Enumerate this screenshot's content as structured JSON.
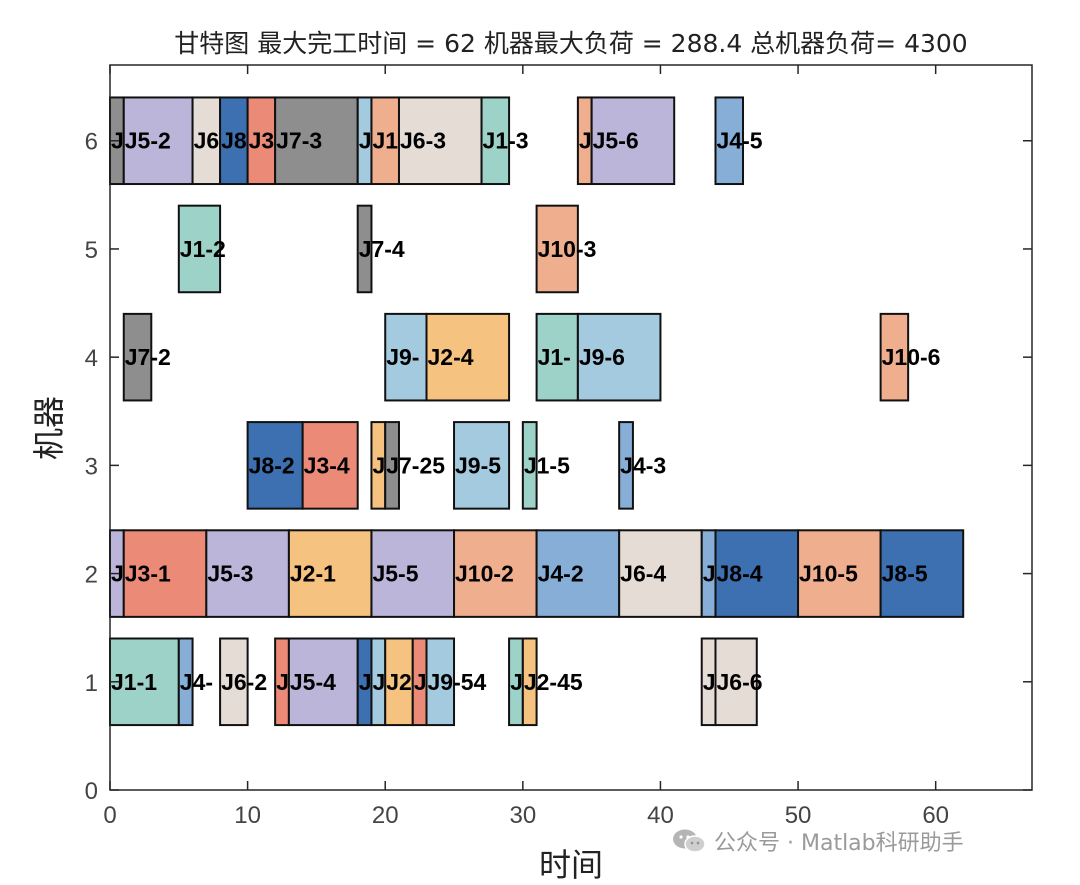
{
  "chart_data": {
    "type": "gantt",
    "title": "甘特图 最大完工时间 = 62 机器最大负荷 = 288.4 总机器负荷= 4300",
    "xlabel": "时间",
    "ylabel": "机器",
    "xlim": [
      0,
      67
    ],
    "ylim": [
      0,
      6.7
    ],
    "xticks": [
      0,
      10,
      20,
      30,
      40,
      50,
      60
    ],
    "yticks": [
      0,
      1,
      2,
      3,
      4,
      5,
      6
    ],
    "grid": false,
    "job_colors": {
      "J1": "#9dd2c8",
      "J2": "#f5c27f",
      "J3": "#ec8a78",
      "J4": "#87aed6",
      "J5": "#bbb5da",
      "J6": "#e6dcd6",
      "J7": "#8e8e8e",
      "J8": "#3c70b0",
      "J9": "#a4cadf",
      "J10": "#efae8e"
    },
    "tasks": [
      {
        "machine": 6,
        "job": "J7",
        "start": 0,
        "end": 1,
        "label": "J"
      },
      {
        "machine": 6,
        "job": "J5",
        "start": 1,
        "end": 6,
        "label": "J5-2"
      },
      {
        "machine": 6,
        "job": "J6",
        "start": 6,
        "end": 8,
        "label": "J6"
      },
      {
        "machine": 6,
        "job": "J8",
        "start": 8,
        "end": 10,
        "label": "J8"
      },
      {
        "machine": 6,
        "job": "J3",
        "start": 10,
        "end": 12,
        "label": "J3"
      },
      {
        "machine": 6,
        "job": "J7",
        "start": 12,
        "end": 18,
        "label": "J7-3"
      },
      {
        "machine": 6,
        "job": "J9",
        "start": 18,
        "end": 19,
        "label": "J"
      },
      {
        "machine": 6,
        "job": "J10",
        "start": 19,
        "end": 21,
        "label": "J1"
      },
      {
        "machine": 6,
        "job": "J6",
        "start": 21,
        "end": 27,
        "label": "J6-3"
      },
      {
        "machine": 6,
        "job": "J1",
        "start": 27,
        "end": 29,
        "label": "J1-3"
      },
      {
        "machine": 6,
        "job": "J10",
        "start": 34,
        "end": 35,
        "label": "J"
      },
      {
        "machine": 6,
        "job": "J5",
        "start": 35,
        "end": 41,
        "label": "J5-6"
      },
      {
        "machine": 6,
        "job": "J4",
        "start": 44,
        "end": 46,
        "label": "J4-5"
      },
      {
        "machine": 5,
        "job": "J1",
        "start": 5,
        "end": 8,
        "label": "J1-2"
      },
      {
        "machine": 5,
        "job": "J7",
        "start": 18,
        "end": 19,
        "label": "J7-4"
      },
      {
        "machine": 5,
        "job": "J10",
        "start": 31,
        "end": 34,
        "label": "J10-3"
      },
      {
        "machine": 4,
        "job": "J7",
        "start": 1,
        "end": 3,
        "label": "J7-2"
      },
      {
        "machine": 4,
        "job": "J9",
        "start": 20,
        "end": 23,
        "label": "J9-"
      },
      {
        "machine": 4,
        "job": "J2",
        "start": 23,
        "end": 29,
        "label": "J2-4"
      },
      {
        "machine": 4,
        "job": "J1",
        "start": 31,
        "end": 34,
        "label": "J1-"
      },
      {
        "machine": 4,
        "job": "J9",
        "start": 34,
        "end": 40,
        "label": "J9-6"
      },
      {
        "machine": 4,
        "job": "J10",
        "start": 56,
        "end": 58,
        "label": "J10-6"
      },
      {
        "machine": 3,
        "job": "J8",
        "start": 10,
        "end": 14,
        "label": "J8-2"
      },
      {
        "machine": 3,
        "job": "J3",
        "start": 14,
        "end": 18,
        "label": "J3-4"
      },
      {
        "machine": 3,
        "job": "J2",
        "start": 19,
        "end": 20,
        "label": "J"
      },
      {
        "machine": 3,
        "job": "J7",
        "start": 20,
        "end": 21,
        "label": "J7-25"
      },
      {
        "machine": 3,
        "job": "J9",
        "start": 25,
        "end": 29,
        "label": "J9-5"
      },
      {
        "machine": 3,
        "job": "J1",
        "start": 30,
        "end": 31,
        "label": "J1-5"
      },
      {
        "machine": 3,
        "job": "J4",
        "start": 37,
        "end": 38,
        "label": "J4-3"
      },
      {
        "machine": 2,
        "job": "J5",
        "start": 0,
        "end": 1,
        "label": "J"
      },
      {
        "machine": 2,
        "job": "J3",
        "start": 1,
        "end": 7,
        "label": "J3-1"
      },
      {
        "machine": 2,
        "job": "J5",
        "start": 7,
        "end": 13,
        "label": "J5-3"
      },
      {
        "machine": 2,
        "job": "J2",
        "start": 13,
        "end": 19,
        "label": "J2-1"
      },
      {
        "machine": 2,
        "job": "J5",
        "start": 19,
        "end": 25,
        "label": "J5-5"
      },
      {
        "machine": 2,
        "job": "J10",
        "start": 25,
        "end": 31,
        "label": "J10-2"
      },
      {
        "machine": 2,
        "job": "J4",
        "start": 31,
        "end": 37,
        "label": "J4-2"
      },
      {
        "machine": 2,
        "job": "J6",
        "start": 37,
        "end": 43,
        "label": "J6-4"
      },
      {
        "machine": 2,
        "job": "J4",
        "start": 43,
        "end": 44,
        "label": "J"
      },
      {
        "machine": 2,
        "job": "J8",
        "start": 44,
        "end": 50,
        "label": "J8-4"
      },
      {
        "machine": 2,
        "job": "J10",
        "start": 50,
        "end": 56,
        "label": "J10-5"
      },
      {
        "machine": 2,
        "job": "J8",
        "start": 56,
        "end": 62,
        "label": "J8-5"
      },
      {
        "machine": 1,
        "job": "J1",
        "start": 0,
        "end": 5,
        "label": "J1-1"
      },
      {
        "machine": 1,
        "job": "J4",
        "start": 5,
        "end": 6,
        "label": "J4-"
      },
      {
        "machine": 1,
        "job": "J6",
        "start": 8,
        "end": 10,
        "label": "J6-2"
      },
      {
        "machine": 1,
        "job": "J3",
        "start": 12,
        "end": 13,
        "label": "J"
      },
      {
        "machine": 1,
        "job": "J5",
        "start": 13,
        "end": 18,
        "label": "J5-4"
      },
      {
        "machine": 1,
        "job": "J8",
        "start": 18,
        "end": 19,
        "label": "J"
      },
      {
        "machine": 1,
        "job": "J9",
        "start": 19,
        "end": 20,
        "label": "J"
      },
      {
        "machine": 1,
        "job": "J2",
        "start": 20,
        "end": 22,
        "label": "J2"
      },
      {
        "machine": 1,
        "job": "J3",
        "start": 22,
        "end": 23,
        "label": "J"
      },
      {
        "machine": 1,
        "job": "J9",
        "start": 23,
        "end": 25,
        "label": "J9-54"
      },
      {
        "machine": 1,
        "job": "J1",
        "start": 29,
        "end": 30,
        "label": "J"
      },
      {
        "machine": 1,
        "job": "J2",
        "start": 30,
        "end": 31,
        "label": "J2-45"
      },
      {
        "machine": 1,
        "job": "J6",
        "start": 43,
        "end": 44,
        "label": "J"
      },
      {
        "machine": 1,
        "job": "J6",
        "start": 44,
        "end": 47,
        "label": "J6-6"
      }
    ]
  },
  "watermark": {
    "text": "公众号 · Matlab科研助手",
    "icon": "wechat-icon"
  }
}
